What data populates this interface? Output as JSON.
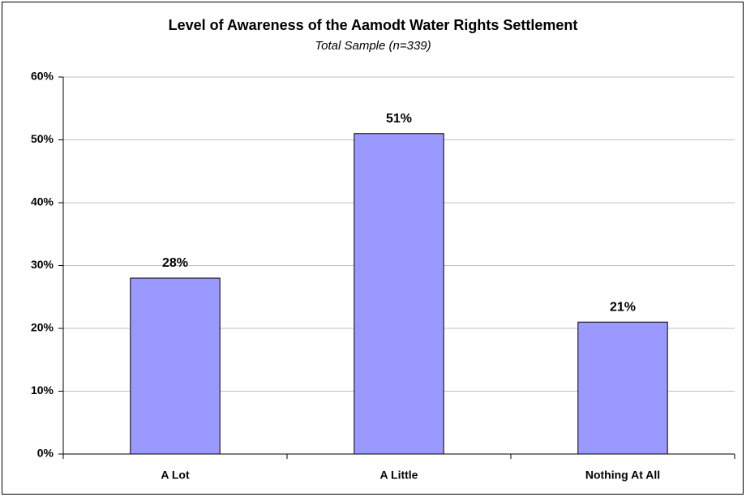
{
  "chart_data": {
    "type": "bar",
    "title": "Level of Awareness of the Aamodt Water Rights Settlement",
    "subtitle": "Total Sample (n=339)",
    "categories": [
      "A Lot",
      "A Little",
      "Nothing At All"
    ],
    "values": [
      28,
      51,
      21
    ],
    "value_labels": [
      "28%",
      "51%",
      "21%"
    ],
    "color": "#9999ff",
    "ylim": [
      0,
      60
    ],
    "yticks": [
      {
        "value": 0,
        "label": "0%"
      },
      {
        "value": 10,
        "label": "10%"
      },
      {
        "value": 20,
        "label": "20%"
      },
      {
        "value": 30,
        "label": "30%"
      },
      {
        "value": 40,
        "label": "40%"
      },
      {
        "value": 50,
        "label": "50%"
      },
      {
        "value": 60,
        "label": "60%"
      }
    ],
    "grid": true
  }
}
